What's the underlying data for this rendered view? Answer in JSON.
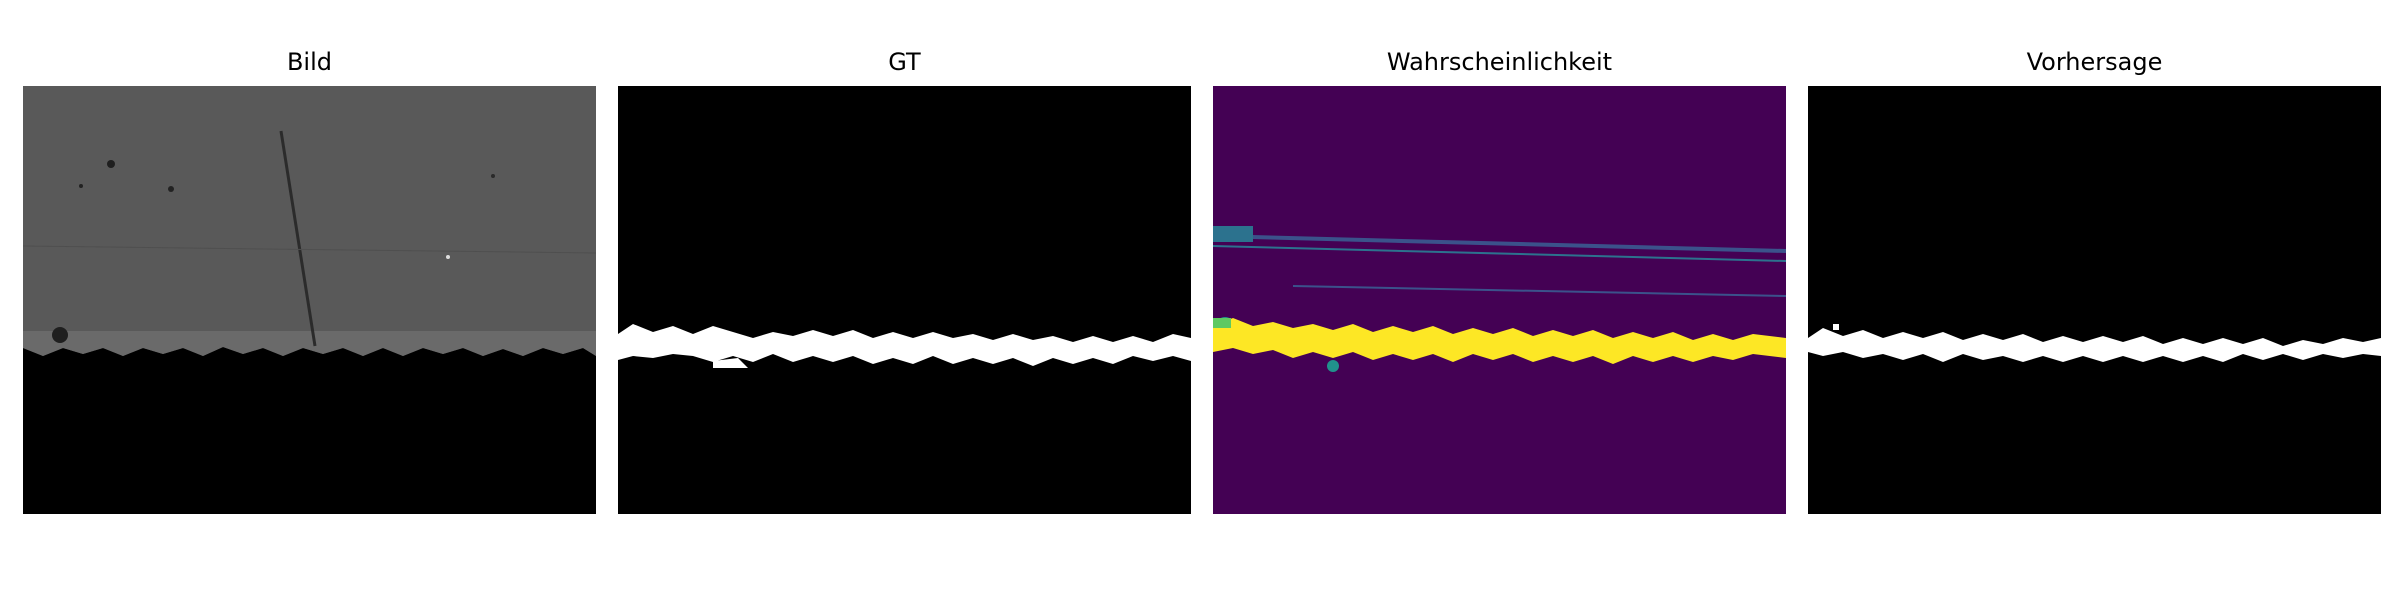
{
  "figure": {
    "panels": [
      {
        "title": "Bild"
      },
      {
        "title": "GT"
      },
      {
        "title": "Wahrscheinlichkeit"
      },
      {
        "title": "Vorhersage"
      }
    ],
    "colors": {
      "background": "#ffffff",
      "mask_background": "#000000",
      "mask_foreground": "#ffffff",
      "micrograph_gray": "#565656",
      "viridis_low": "#440154",
      "viridis_mid": "#21918c",
      "viridis_high": "#fde725"
    }
  }
}
